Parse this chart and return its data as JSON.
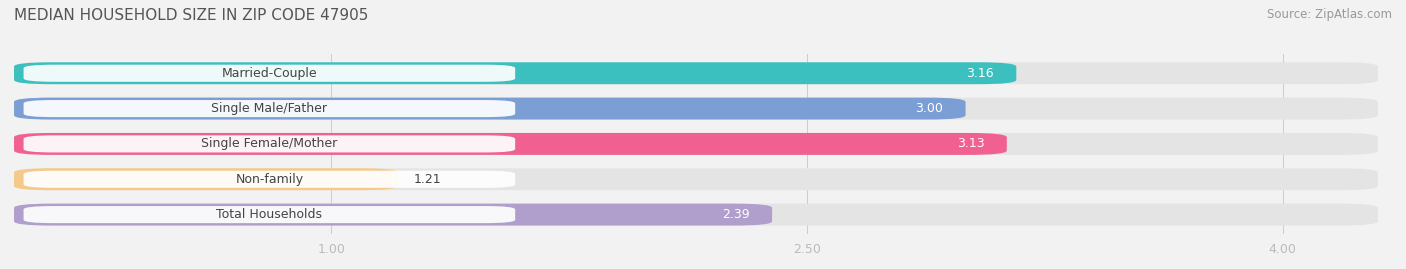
{
  "title": "MEDIAN HOUSEHOLD SIZE IN ZIP CODE 47905",
  "source": "Source: ZipAtlas.com",
  "categories": [
    "Married-Couple",
    "Single Male/Father",
    "Single Female/Mother",
    "Non-family",
    "Total Households"
  ],
  "values": [
    3.16,
    3.0,
    3.13,
    1.21,
    2.39
  ],
  "bar_colors": [
    "#3bbfbf",
    "#7b9fd4",
    "#f06090",
    "#f5c98a",
    "#b09fcc"
  ],
  "xlim_left": 0.0,
  "xlim_right": 4.3,
  "xticks": [
    1.0,
    2.5,
    4.0
  ],
  "xtick_labels": [
    "1.00",
    "2.50",
    "4.00"
  ],
  "title_fontsize": 11,
  "source_fontsize": 8.5,
  "label_fontsize": 9,
  "value_fontsize": 9,
  "bar_height": 0.62,
  "background_color": "#f2f2f2",
  "bar_bg_color": "#e4e4e4",
  "title_color": "#555555",
  "source_color": "#999999",
  "tick_color": "#bbbbbb",
  "label_color": "#444444",
  "value_color": "#ffffff",
  "label_box_color": "#ffffff",
  "bar_gap": 0.18
}
